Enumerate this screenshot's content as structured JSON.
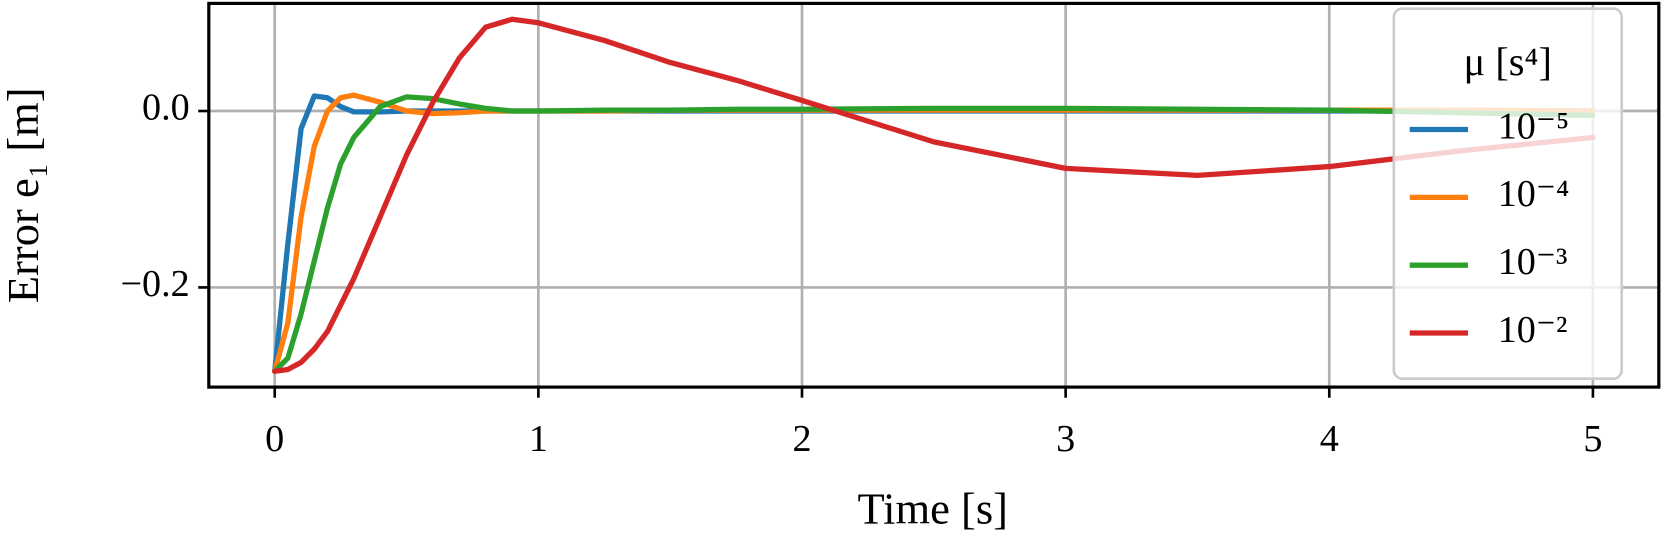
{
  "chart_data": {
    "type": "line",
    "xlabel": "Time [s]",
    "ylabel": "Error e₁ [m]",
    "x": [
      0,
      0.05,
      0.1,
      0.15,
      0.2,
      0.25,
      0.3,
      0.4,
      0.5,
      0.6,
      0.7,
      0.8,
      0.9,
      1.0,
      1.25,
      1.5,
      1.75,
      2,
      2.5,
      3,
      3.5,
      4,
      4.5,
      5
    ],
    "series": [
      {
        "name": "10⁻⁵",
        "color": "#1f77b4",
        "values": [
          -0.295,
          -0.15,
          -0.02,
          0.017,
          0.015,
          0.005,
          -0.001,
          -0.001,
          0,
          0,
          0,
          0,
          0,
          0,
          0,
          0,
          0,
          0,
          0,
          0,
          0,
          0,
          0,
          0
        ]
      },
      {
        "name": "10⁻⁴",
        "color": "#ff7f0e",
        "values": [
          -0.295,
          -0.24,
          -0.12,
          -0.04,
          0.0,
          0.015,
          0.018,
          0.01,
          0.0,
          -0.003,
          -0.002,
          0,
          0,
          0,
          0,
          0.001,
          0.001,
          0.001,
          0.001,
          0.001,
          0.001,
          0.001,
          0.001,
          0.0
        ]
      },
      {
        "name": "10⁻³",
        "color": "#2ca02c",
        "values": [
          -0.295,
          -0.28,
          -0.23,
          -0.17,
          -0.11,
          -0.06,
          -0.03,
          0.005,
          0.016,
          0.014,
          0.008,
          0.003,
          0.0,
          0,
          0.001,
          0.001,
          0.002,
          0.002,
          0.003,
          0.003,
          0.002,
          0.001,
          -0.002,
          -0.005
        ]
      },
      {
        "name": "10⁻²",
        "color": "#d62728",
        "values": [
          -0.295,
          -0.293,
          -0.285,
          -0.27,
          -0.25,
          -0.22,
          -0.19,
          -0.12,
          -0.05,
          0.01,
          0.06,
          0.095,
          0.104,
          0.1,
          0.08,
          0.055,
          0.035,
          0.012,
          -0.035,
          -0.065,
          -0.073,
          -0.063,
          -0.045,
          -0.03
        ]
      }
    ],
    "xlim": [
      -0.25,
      5.25
    ],
    "ylim": [
      -0.313,
      0.122
    ],
    "xticks": [
      0,
      1,
      2,
      3,
      4,
      5
    ],
    "yticks": [
      {
        "value": -0.2,
        "label": "−0.2"
      },
      {
        "value": 0,
        "label": "0.0"
      }
    ],
    "grid": true,
    "legend": {
      "title": "μ [s⁴]",
      "loc": "upper right"
    }
  }
}
